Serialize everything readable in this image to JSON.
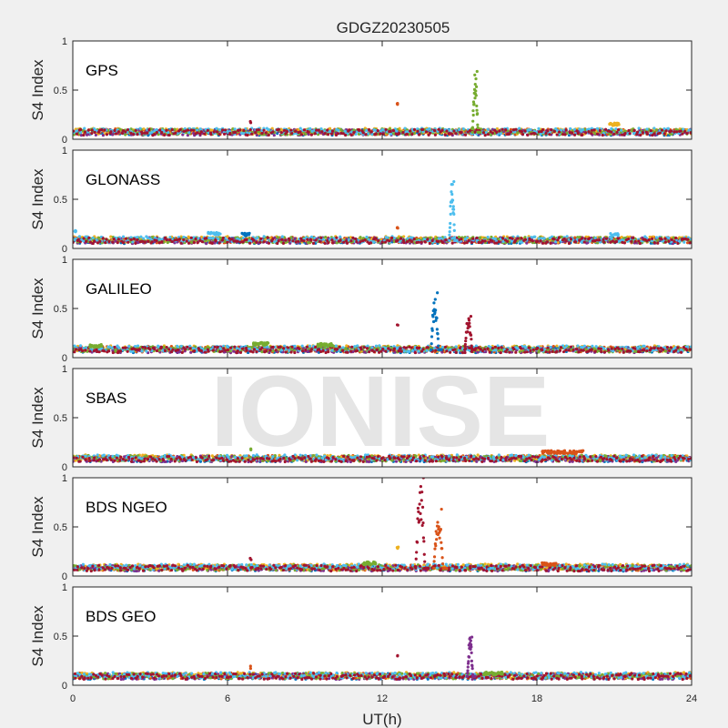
{
  "figure": {
    "title": "GDGZ20230505",
    "watermark": "IONISE",
    "background": "#f0f0f0"
  },
  "chart_data": {
    "type": "scatter",
    "title": "GDGZ20230505",
    "xlabel": "UT(h)",
    "ylabel": "S4 Index",
    "xlim": [
      0,
      24
    ],
    "ylim": [
      0,
      1
    ],
    "xticks": [
      "0",
      "6",
      "12",
      "18",
      "24"
    ],
    "yticks": [
      "0",
      "0.5",
      "1"
    ],
    "grid": false,
    "colors": [
      "#0072bd",
      "#d95319",
      "#edb120",
      "#7e2f8e",
      "#77ac30",
      "#4dbeee",
      "#a2142f"
    ],
    "panels": [
      {
        "name": "GPS",
        "baseline": 0.07,
        "bumps": [
          {
            "x": 6.9,
            "y": 0.17,
            "c": 6,
            "n": 2
          },
          {
            "x": 12.6,
            "y": 0.35,
            "c": 1,
            "n": 3
          },
          {
            "x": 21.0,
            "y": 0.15,
            "c": 2,
            "n": 20
          }
        ],
        "spikes": [
          {
            "x0": 15.5,
            "x1": 15.8,
            "peak": 0.69,
            "c": 4
          }
        ]
      },
      {
        "name": "GLONASS",
        "baseline": 0.08,
        "bumps": [
          {
            "x": 0.1,
            "y": 0.18,
            "c": 5,
            "n": 4
          },
          {
            "x": 5.5,
            "y": 0.15,
            "c": 5,
            "n": 25
          },
          {
            "x": 6.7,
            "y": 0.14,
            "c": 0,
            "n": 15
          },
          {
            "x": 12.6,
            "y": 0.2,
            "c": 1,
            "n": 3
          },
          {
            "x": 21.0,
            "y": 0.14,
            "c": 5,
            "n": 15
          }
        ],
        "spikes": [
          {
            "x0": 14.6,
            "x1": 14.9,
            "peak": 0.68,
            "c": 5
          }
        ]
      },
      {
        "name": "GALILEO",
        "baseline": 0.08,
        "bumps": [
          {
            "x": 0.9,
            "y": 0.12,
            "c": 4,
            "n": 25
          },
          {
            "x": 7.3,
            "y": 0.14,
            "c": 4,
            "n": 30
          },
          {
            "x": 9.8,
            "y": 0.13,
            "c": 4,
            "n": 30
          },
          {
            "x": 12.6,
            "y": 0.34,
            "c": 6,
            "n": 2
          }
        ],
        "spikes": [
          {
            "x0": 13.9,
            "x1": 14.3,
            "peak": 0.66,
            "c": 0
          },
          {
            "x0": 15.2,
            "x1": 15.6,
            "peak": 0.42,
            "c": 6
          }
        ]
      },
      {
        "name": "SBAS",
        "baseline": 0.08,
        "bumps": [
          {
            "x": 6.9,
            "y": 0.17,
            "c": 4,
            "n": 2
          },
          {
            "x": 19.0,
            "y": 0.15,
            "c": 1,
            "n": 80
          }
        ],
        "spikes": []
      },
      {
        "name": "BDS NGEO",
        "baseline": 0.08,
        "bumps": [
          {
            "x": 6.9,
            "y": 0.17,
            "c": 6,
            "n": 2
          },
          {
            "x": 12.6,
            "y": 0.29,
            "c": 2,
            "n": 3
          },
          {
            "x": 11.5,
            "y": 0.13,
            "c": 4,
            "n": 25
          },
          {
            "x": 18.5,
            "y": 0.12,
            "c": 1,
            "n": 30
          }
        ],
        "spikes": [
          {
            "x0": 13.3,
            "x1": 13.8,
            "peak": 1.0,
            "c": 6
          },
          {
            "x0": 14.0,
            "x1": 14.5,
            "peak": 0.68,
            "c": 1
          }
        ]
      },
      {
        "name": "BDS GEO",
        "baseline": 0.09,
        "bumps": [
          {
            "x": 6.9,
            "y": 0.18,
            "c": 1,
            "n": 2
          },
          {
            "x": 12.6,
            "y": 0.3,
            "c": 6,
            "n": 2
          },
          {
            "x": 16.3,
            "y": 0.12,
            "c": 4,
            "n": 35
          }
        ],
        "spikes": [
          {
            "x0": 15.3,
            "x1": 15.6,
            "peak": 0.49,
            "c": 3
          }
        ]
      }
    ]
  }
}
